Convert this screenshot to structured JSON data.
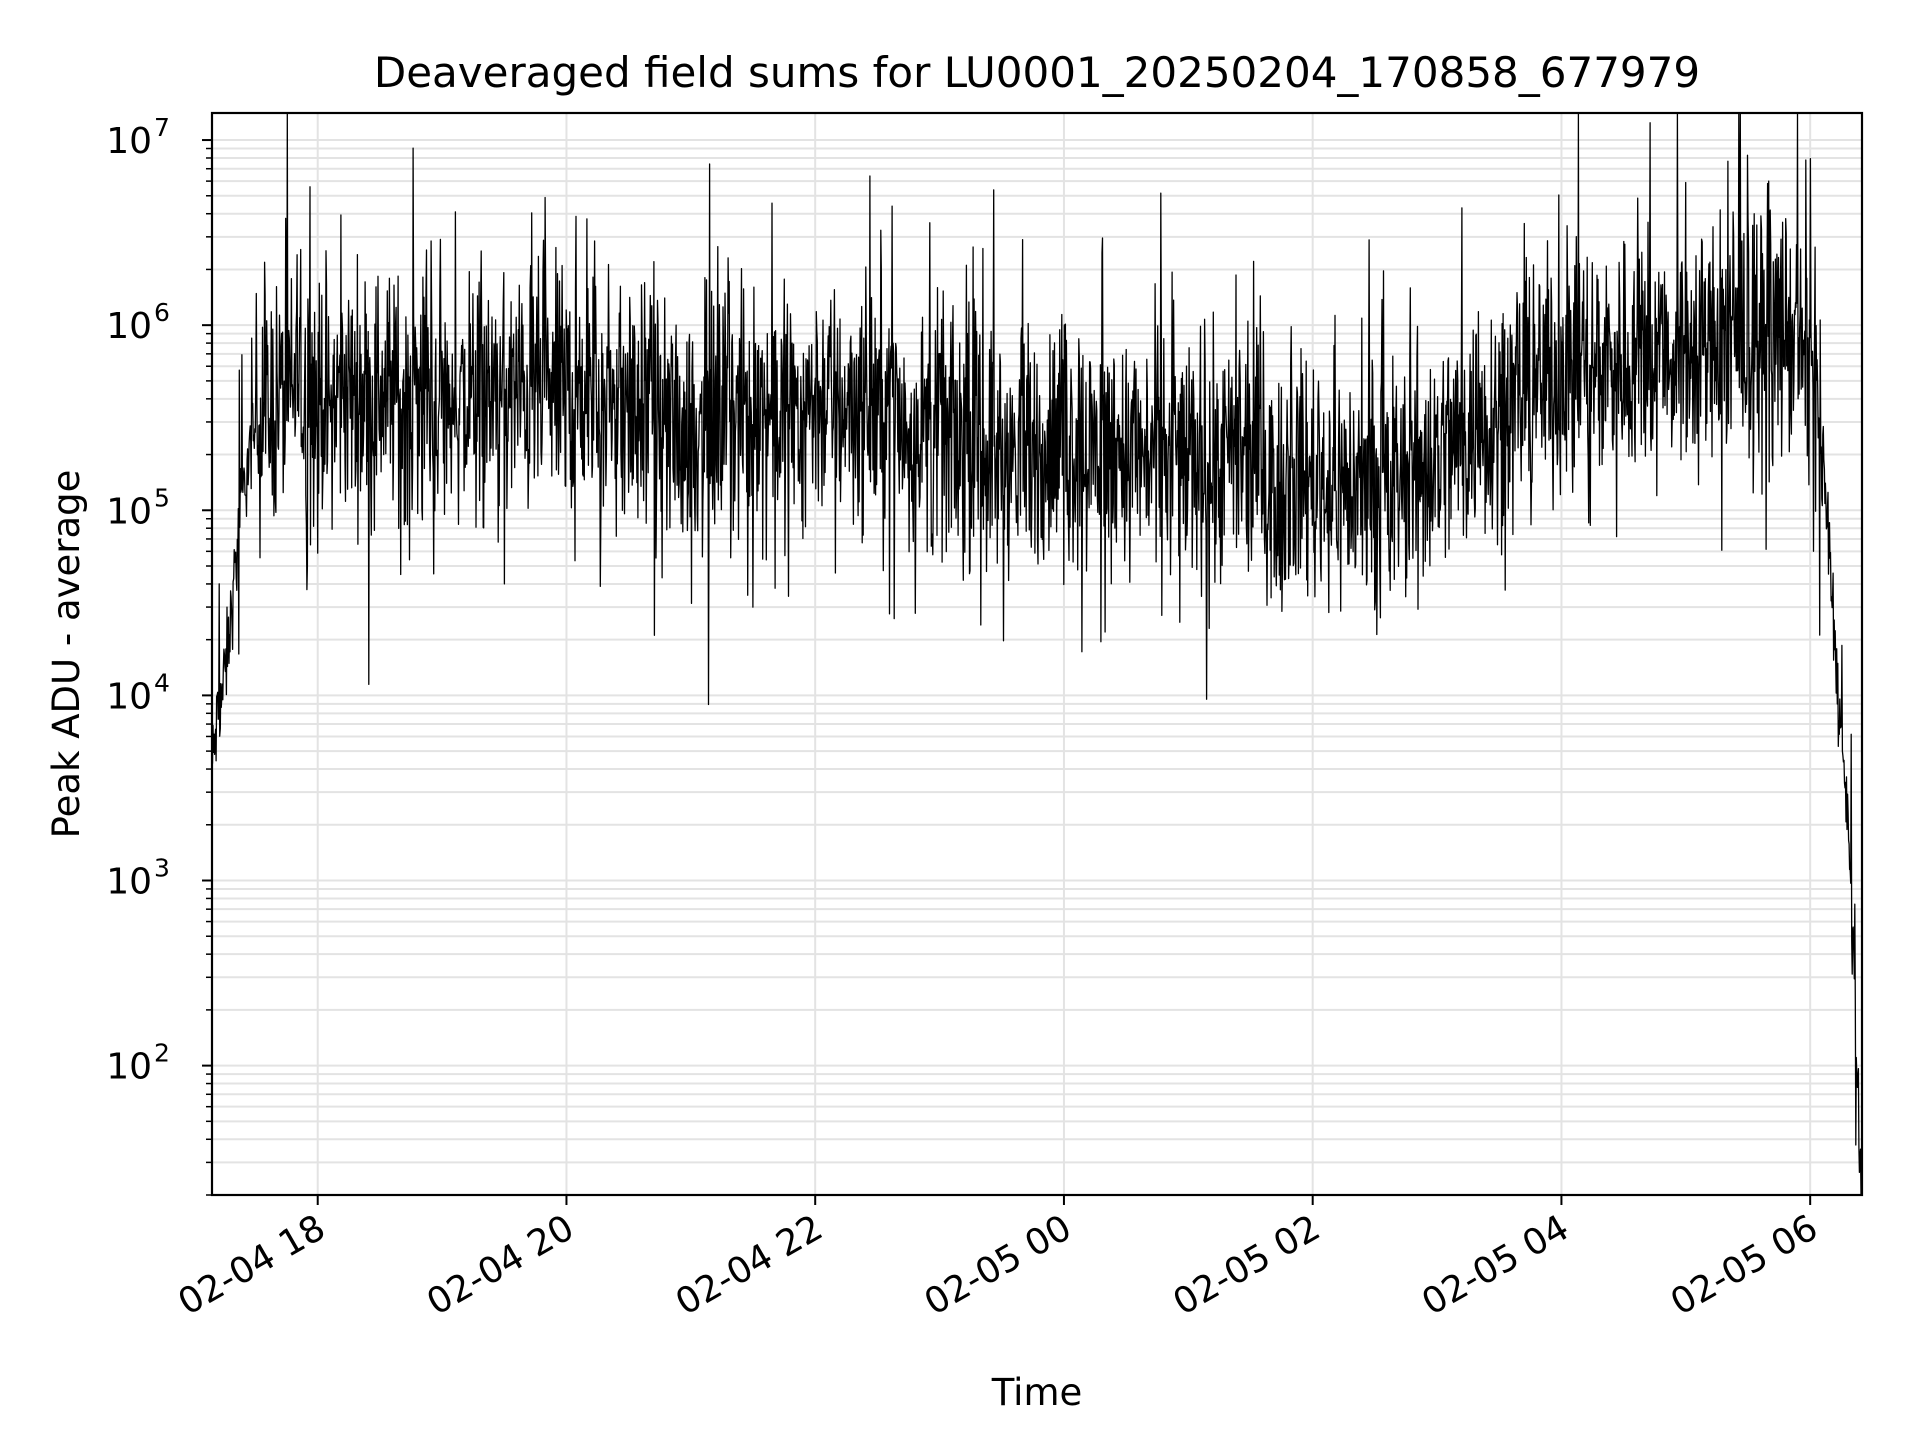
{
  "chart_data": {
    "type": "line",
    "title": "Deaveraged field sums for LU0001_20250204_170858_677979",
    "xlabel": "Time",
    "ylabel": "Peak ADU - average",
    "x_range": [
      "2025-02-04 17:09",
      "2025-02-05 06:25"
    ],
    "y_scale": "log",
    "ylim": [
      20,
      14000000
    ],
    "y_ticks": [
      {
        "value": 100,
        "base": "10",
        "exp": "2"
      },
      {
        "value": 1000,
        "base": "10",
        "exp": "3"
      },
      {
        "value": 10000,
        "base": "10",
        "exp": "4"
      },
      {
        "value": 100000,
        "base": "10",
        "exp": "5"
      },
      {
        "value": 1000000,
        "base": "10",
        "exp": "6"
      },
      {
        "value": 10000000,
        "base": "10",
        "exp": "7"
      }
    ],
    "x_ticks": [
      {
        "value": "2025-02-04 18:00",
        "label": "02-04 18"
      },
      {
        "value": "2025-02-04 20:00",
        "label": "02-04 20"
      },
      {
        "value": "2025-02-04 22:00",
        "label": "02-04 22"
      },
      {
        "value": "2025-02-05 00:00",
        "label": "02-05 00"
      },
      {
        "value": "2025-02-05 02:00",
        "label": "02-05 02"
      },
      {
        "value": "2025-02-05 04:00",
        "label": "02-05 04"
      },
      {
        "value": "2025-02-05 06:00",
        "label": "02-05 06"
      }
    ],
    "grid": true,
    "line_color": "#000000",
    "grid_color": "#e3e3e3",
    "series": [
      {
        "envelope": [
          {
            "t": "2025-02-04 17:09",
            "y": 4000
          },
          {
            "t": "2025-02-04 17:12",
            "y": 8000
          },
          {
            "t": "2025-02-04 17:15",
            "y": 12000
          },
          {
            "t": "2025-02-04 17:18",
            "y": 25000
          },
          {
            "t": "2025-02-04 17:21",
            "y": 60000
          },
          {
            "t": "2025-02-04 17:25",
            "y": 150000
          },
          {
            "t": "2025-02-04 17:30",
            "y": 280000
          },
          {
            "t": "2025-02-04 17:40",
            "y": 400000
          },
          {
            "t": "2025-02-04 18:30",
            "y": 450000
          },
          {
            "t": "2025-02-04 19:00",
            "y": 380000
          },
          {
            "t": "2025-02-04 20:00",
            "y": 450000
          },
          {
            "t": "2025-02-04 21:00",
            "y": 280000
          },
          {
            "t": "2025-02-04 22:00",
            "y": 400000
          },
          {
            "t": "2025-02-04 22:30",
            "y": 350000
          },
          {
            "t": "2025-02-04 23:30",
            "y": 200000
          },
          {
            "t": "2025-02-05 00:00",
            "y": 230000
          },
          {
            "t": "2025-02-05 01:00",
            "y": 200000
          },
          {
            "t": "2025-02-05 02:00",
            "y": 150000
          },
          {
            "t": "2025-02-05 02:30",
            "y": 120000
          },
          {
            "t": "2025-02-05 03:00",
            "y": 200000
          },
          {
            "t": "2025-02-05 03:30",
            "y": 350000
          },
          {
            "t": "2025-02-05 04:00",
            "y": 600000
          },
          {
            "t": "2025-02-05 05:00",
            "y": 750000
          },
          {
            "t": "2025-02-05 05:50",
            "y": 900000
          },
          {
            "t": "2025-02-05 06:00",
            "y": 600000
          },
          {
            "t": "2025-02-05 06:05",
            "y": 300000
          },
          {
            "t": "2025-02-05 06:08",
            "y": 100000
          },
          {
            "t": "2025-02-05 06:11",
            "y": 30000
          },
          {
            "t": "2025-02-05 06:14",
            "y": 8000
          },
          {
            "t": "2025-02-05 06:18",
            "y": 2000
          },
          {
            "t": "2025-02-05 06:21",
            "y": 400
          },
          {
            "t": "2025-02-05 06:24",
            "y": 25
          }
        ],
        "peaks": [
          {
            "t": "2025-02-04 17:50",
            "y": 2400000
          },
          {
            "t": "2025-02-04 19:58",
            "y": 2100000
          },
          {
            "t": "2025-02-04 22:37",
            "y": 4400000
          },
          {
            "t": "2025-02-04 23:40",
            "y": 2900000
          },
          {
            "t": "2025-02-05 03:12",
            "y": 4300000
          },
          {
            "t": "2025-02-05 05:00",
            "y": 5900000
          },
          {
            "t": "2025-02-05 05:40",
            "y": 6000000
          },
          {
            "t": "2025-02-05 05:58",
            "y": 7800000
          }
        ],
        "troughs": [
          {
            "t": "2025-02-04 17:55",
            "y": 50000
          },
          {
            "t": "2025-02-04 18:40",
            "y": 45000
          },
          {
            "t": "2025-02-04 19:30",
            "y": 40000
          },
          {
            "t": "2025-02-04 21:30",
            "y": 30000
          },
          {
            "t": "2025-02-04 22:38",
            "y": 26000
          },
          {
            "t": "2025-02-04 23:20",
            "y": 24000
          },
          {
            "t": "2025-02-05 01:10",
            "y": 23000
          },
          {
            "t": "2025-02-05 02:30",
            "y": 29000
          }
        ]
      }
    ]
  }
}
